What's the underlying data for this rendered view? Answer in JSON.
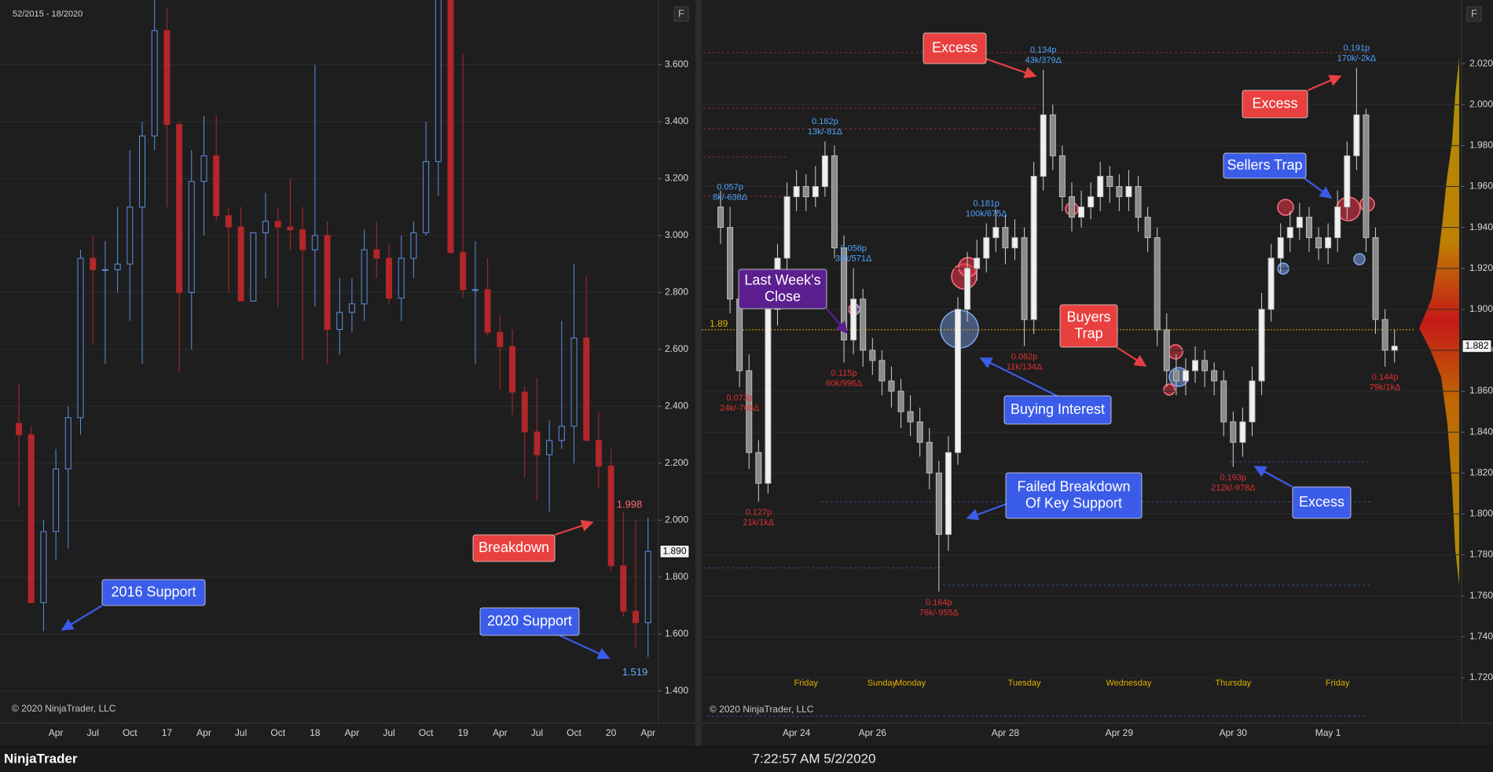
{
  "chart_data": [
    {
      "type": "candlestick",
      "subtitle": "52/2015 - 18/2020",
      "footer": "© 2020 NinjaTrader, LLC",
      "button": "F",
      "categories": [
        null,
        null,
        null,
        "Apr",
        null,
        null,
        "Jul",
        null,
        null,
        "Oct",
        null,
        null,
        "17",
        null,
        null,
        "Apr",
        null,
        null,
        "Jul",
        null,
        null,
        "Oct",
        null,
        null,
        "18",
        null,
        null,
        "Apr",
        null,
        null,
        "Jul",
        null,
        null,
        "Oct",
        null,
        null,
        "19",
        null,
        null,
        "Apr",
        null,
        null,
        "Jul",
        null,
        null,
        "Oct",
        null,
        null,
        "20",
        null,
        null,
        "Apr"
      ],
      "open": [
        2.34,
        2.3,
        1.71,
        1.96,
        2.18,
        2.36,
        2.92,
        2.88,
        2.88,
        2.9,
        3.1,
        3.35,
        3.72,
        3.39,
        2.8,
        3.19,
        3.28,
        3.07,
        3.03,
        2.77,
        3.01,
        3.05,
        3.03,
        3.02,
        2.95,
        3.0,
        2.67,
        2.73,
        2.76,
        2.95,
        2.92,
        2.78,
        2.92,
        3.01,
        3.26,
        4.61,
        2.94,
        2.81,
        2.81,
        2.66,
        2.61,
        2.45,
        2.31,
        2.23,
        2.28,
        2.33,
        2.64,
        2.28,
        2.19,
        1.84,
        1.68,
        1.64
      ],
      "high": [
        2.48,
        2.33,
        2.0,
        2.25,
        2.4,
        2.95,
        3.0,
        2.98,
        3.1,
        3.3,
        3.4,
        3.99,
        3.8,
        3.4,
        3.3,
        3.42,
        3.42,
        3.1,
        3.1,
        3.0,
        3.15,
        3.1,
        3.2,
        3.1,
        3.6,
        3.05,
        2.85,
        2.85,
        3.02,
        3.05,
        2.97,
        3.0,
        3.05,
        3.4,
        4.93,
        4.8,
        3.64,
        2.98,
        2.92,
        2.72,
        2.67,
        2.47,
        2.5,
        2.35,
        2.7,
        2.9,
        2.86,
        2.38,
        2.25,
        2.03,
        2.0,
        2.01
      ],
      "low": [
        2.05,
        1.71,
        1.61,
        1.86,
        1.9,
        2.3,
        2.62,
        2.55,
        2.8,
        2.7,
        2.55,
        3.3,
        3.1,
        2.52,
        2.6,
        3.0,
        3.05,
        2.8,
        2.78,
        2.77,
        2.85,
        2.75,
        2.95,
        2.56,
        2.75,
        2.55,
        2.58,
        2.66,
        2.7,
        2.85,
        2.76,
        2.7,
        2.85,
        3.0,
        3.14,
        2.94,
        2.78,
        2.55,
        2.65,
        2.46,
        2.37,
        2.15,
        2.07,
        2.03,
        2.25,
        2.2,
        2.28,
        2.11,
        1.82,
        1.66,
        1.55,
        1.519
      ],
      "close": [
        2.3,
        1.71,
        1.96,
        2.18,
        2.36,
        2.92,
        2.88,
        2.88,
        2.9,
        3.1,
        3.35,
        3.72,
        3.39,
        2.8,
        3.19,
        3.28,
        3.07,
        3.03,
        2.77,
        3.01,
        3.05,
        3.03,
        3.02,
        2.95,
        3.0,
        2.67,
        2.73,
        2.76,
        2.95,
        2.92,
        2.78,
        2.92,
        3.01,
        3.26,
        4.61,
        2.94,
        2.81,
        2.81,
        2.66,
        2.61,
        2.45,
        2.31,
        2.23,
        2.28,
        2.33,
        2.64,
        2.28,
        2.19,
        1.84,
        1.68,
        1.64,
        1.89
      ],
      "up_color": "#5b8fe6",
      "down_color": "#b3262a",
      "wick_color": null,
      "ylim": [
        1.3,
        3.8
      ],
      "yticks": [
        {
          "value": 1.4,
          "label": "1.400"
        },
        {
          "value": 1.6,
          "label": "1.600"
        },
        {
          "value": 1.8,
          "label": "1.800"
        },
        {
          "value": 2.0,
          "label": "2.000"
        },
        {
          "value": 2.2,
          "label": "2.200"
        },
        {
          "value": 2.4,
          "label": "2.400"
        },
        {
          "value": 2.6,
          "label": "2.600"
        },
        {
          "value": 2.8,
          "label": "2.800"
        },
        {
          "value": 3.0,
          "label": "3.000"
        },
        {
          "value": 3.2,
          "label": "3.200"
        },
        {
          "value": 3.4,
          "label": "3.400"
        },
        {
          "value": 3.6,
          "label": "3.600"
        }
      ],
      "grid": true,
      "last_price": {
        "value": 1.89,
        "label": "1.890"
      },
      "price_labels": [
        {
          "value": 1.998,
          "color": "#ff6b6b"
        },
        {
          "value": 1.519,
          "color": "#6aa8ff"
        }
      ],
      "callouts": [
        {
          "lines": [
            "2016 Support"
          ],
          "color": "#3b5ce8"
        },
        {
          "lines": [
            "Breakdown"
          ],
          "color": "#e8403f"
        },
        {
          "lines": [
            "2020 Support"
          ],
          "color": "#3b5ce8"
        }
      ]
    },
    {
      "type": "candlestick",
      "footer": "© 2020 NinjaTrader, LLC",
      "button": "F",
      "categories": [
        null,
        null,
        null,
        null,
        null,
        null,
        null,
        null,
        "Apr 24",
        null,
        null,
        null,
        null,
        null,
        null,
        null,
        "Apr 26",
        null,
        null,
        null,
        null,
        null,
        null,
        null,
        null,
        null,
        null,
        null,
        null,
        null,
        "Apr 28",
        null,
        null,
        null,
        null,
        null,
        null,
        null,
        null,
        null,
        null,
        null,
        "Apr 29",
        null,
        null,
        null,
        null,
        null,
        null,
        null,
        null,
        null,
        null,
        null,
        "Apr 30",
        null,
        null,
        null,
        null,
        null,
        null,
        null,
        null,
        null,
        "May 1",
        null,
        null,
        null,
        null,
        null,
        null,
        null
      ],
      "sessions": [
        null,
        null,
        null,
        null,
        null,
        null,
        null,
        null,
        null,
        "Friday",
        null,
        null,
        null,
        null,
        null,
        null,
        null,
        "Sunday",
        null,
        null,
        "Monday",
        null,
        null,
        null,
        null,
        null,
        null,
        null,
        null,
        null,
        null,
        null,
        "Tuesday",
        null,
        null,
        null,
        null,
        null,
        null,
        null,
        null,
        null,
        null,
        "Wednesday",
        null,
        null,
        null,
        null,
        null,
        null,
        null,
        null,
        null,
        null,
        "Thursday",
        null,
        null,
        null,
        null,
        null,
        null,
        null,
        null,
        null,
        null,
        "Friday",
        null,
        null,
        null,
        null,
        null,
        null
      ],
      "open": [
        1.95,
        1.94,
        1.905,
        1.87,
        1.83,
        1.815,
        1.9,
        1.925,
        1.955,
        1.96,
        1.955,
        1.96,
        1.975,
        1.93,
        1.885,
        1.905,
        1.88,
        1.875,
        1.865,
        1.86,
        1.85,
        1.845,
        1.835,
        1.82,
        1.79,
        1.83,
        1.9,
        1.92,
        1.925,
        1.935,
        1.94,
        1.93,
        1.935,
        1.895,
        1.965,
        1.995,
        1.975,
        1.955,
        1.945,
        1.95,
        1.955,
        1.965,
        1.96,
        1.955,
        1.96,
        1.945,
        1.935,
        1.89,
        1.87,
        1.865,
        1.87,
        1.875,
        1.87,
        1.865,
        1.845,
        1.835,
        1.845,
        1.865,
        1.9,
        1.925,
        1.935,
        1.94,
        1.945,
        1.935,
        1.93,
        1.935,
        1.95,
        1.975,
        1.995,
        1.935,
        1.895,
        1.88
      ],
      "high": [
        1.958,
        1.95,
        1.912,
        1.878,
        1.836,
        1.908,
        1.932,
        1.962,
        1.968,
        1.966,
        1.97,
        1.982,
        1.98,
        1.936,
        1.92,
        1.91,
        1.886,
        1.88,
        1.872,
        1.866,
        1.858,
        1.852,
        1.842,
        1.826,
        1.838,
        1.906,
        1.928,
        1.934,
        1.942,
        1.949,
        1.946,
        1.944,
        1.94,
        1.972,
        2.017,
        2.0,
        1.98,
        1.962,
        1.958,
        1.962,
        1.972,
        1.97,
        1.966,
        1.968,
        1.965,
        1.95,
        1.94,
        1.898,
        1.878,
        1.876,
        1.882,
        1.88,
        1.874,
        1.87,
        1.85,
        1.852,
        1.872,
        1.908,
        1.932,
        1.942,
        1.948,
        1.952,
        1.95,
        1.94,
        1.942,
        1.958,
        1.982,
        2.018,
        1.998,
        1.94,
        1.9,
        1.89
      ],
      "low": [
        1.932,
        1.898,
        1.862,
        1.822,
        1.806,
        1.81,
        1.892,
        1.918,
        1.948,
        1.948,
        1.95,
        1.955,
        1.925,
        1.874,
        1.878,
        1.872,
        1.868,
        1.858,
        1.852,
        1.842,
        1.838,
        1.828,
        1.812,
        1.762,
        1.782,
        1.824,
        1.894,
        1.914,
        1.918,
        1.928,
        1.922,
        1.924,
        1.882,
        1.888,
        1.958,
        1.968,
        1.948,
        1.938,
        1.94,
        1.944,
        1.948,
        1.952,
        1.948,
        1.948,
        1.938,
        1.928,
        1.882,
        1.862,
        1.858,
        1.858,
        1.864,
        1.862,
        1.858,
        1.838,
        1.823,
        1.828,
        1.838,
        1.858,
        1.894,
        1.918,
        1.928,
        1.934,
        1.928,
        1.924,
        1.922,
        1.928,
        1.944,
        1.968,
        1.928,
        1.888,
        1.872,
        1.874
      ],
      "close": [
        1.94,
        1.905,
        1.87,
        1.83,
        1.815,
        1.9,
        1.925,
        1.955,
        1.96,
        1.955,
        1.96,
        1.975,
        1.93,
        1.885,
        1.905,
        1.88,
        1.875,
        1.865,
        1.86,
        1.85,
        1.845,
        1.835,
        1.82,
        1.79,
        1.83,
        1.9,
        1.92,
        1.925,
        1.935,
        1.94,
        1.93,
        1.935,
        1.895,
        1.965,
        1.995,
        1.975,
        1.955,
        1.945,
        1.95,
        1.955,
        1.965,
        1.96,
        1.955,
        1.96,
        1.945,
        1.935,
        1.89,
        1.87,
        1.865,
        1.87,
        1.875,
        1.87,
        1.865,
        1.845,
        1.835,
        1.845,
        1.865,
        1.9,
        1.925,
        1.935,
        1.94,
        1.945,
        1.935,
        1.93,
        1.935,
        1.95,
        1.975,
        1.995,
        1.935,
        1.895,
        1.88,
        1.882
      ],
      "up_color": "#f0f0f0",
      "down_color": "#8a8a8a",
      "wick_color": "#d0d0d0",
      "ylim": [
        1.7,
        2.045
      ],
      "yticks": [
        {
          "value": 1.72,
          "label": "1.720"
        },
        {
          "value": 1.74,
          "label": "1.740"
        },
        {
          "value": 1.76,
          "label": "1.760"
        },
        {
          "value": 1.78,
          "label": "1.780"
        },
        {
          "value": 1.8,
          "label": "1.800"
        },
        {
          "value": 1.82,
          "label": "1.820"
        },
        {
          "value": 1.84,
          "label": "1.840"
        },
        {
          "value": 1.86,
          "label": "1.860"
        },
        {
          "value": 1.88,
          "label": "1.880"
        },
        {
          "value": 1.9,
          "label": "1.900"
        },
        {
          "value": 1.92,
          "label": "1.920"
        },
        {
          "value": 1.94,
          "label": "1.940"
        },
        {
          "value": 1.96,
          "label": "1.960"
        },
        {
          "value": 1.98,
          "label": "1.980"
        },
        {
          "value": 2.0,
          "label": "2.000"
        },
        {
          "value": 2.02,
          "label": "2.020"
        }
      ],
      "grid": true,
      "last_price": {
        "value": 1.882,
        "label": "1.882"
      },
      "reference_line": {
        "value": 1.89,
        "color": "#e0b000"
      },
      "swing_labels": [
        {
          "lines": [
            "0.057p",
            "8k/-638Δ"
          ],
          "color": "#4da3ff"
        },
        {
          "lines": [
            "0.182p",
            "13k/-81Δ"
          ],
          "color": "#4da3ff"
        },
        {
          "lines": [
            "0.056p",
            "35k/571Δ"
          ],
          "color": "#4da3ff"
        },
        {
          "lines": [
            "0.181p",
            "100k/675Δ"
          ],
          "color": "#4da3ff"
        },
        {
          "lines": [
            "0.134p",
            "43k/379Δ"
          ],
          "color": "#4da3ff"
        },
        {
          "lines": [
            "0.191p",
            "170k/-2kΔ"
          ],
          "color": "#4da3ff"
        },
        {
          "lines": [
            "0.073p",
            "24k/-766Δ"
          ],
          "color": "#e03030"
        },
        {
          "lines": [
            "0.127p",
            "21k/1kΔ"
          ],
          "color": "#e03030"
        },
        {
          "lines": [
            "0.115p",
            "60k/996Δ"
          ],
          "color": "#e03030"
        },
        {
          "lines": [
            "0.164p",
            "76k/-955Δ"
          ],
          "color": "#e03030"
        },
        {
          "lines": [
            "0.062p",
            "11k/134Δ"
          ],
          "color": "#e03030"
        },
        {
          "lines": [
            "0.193p",
            "212k/-978Δ"
          ],
          "color": "#e03030"
        },
        {
          "lines": [
            "0.144p",
            "79k/1kΔ"
          ],
          "color": "#e03030"
        }
      ],
      "callouts": [
        {
          "lines": [
            "Excess"
          ],
          "color": "#e8403f"
        },
        {
          "lines": [
            "Last Week's",
            "Close"
          ],
          "color": "#5b1f8f"
        },
        {
          "lines": [
            "Buyers",
            "Trap"
          ],
          "color": "#e8403f"
        },
        {
          "lines": [
            "Buying Interest"
          ],
          "color": "#3b5ce8"
        },
        {
          "lines": [
            "Failed Breakdown",
            "Of Key Support"
          ],
          "color": "#3b5ce8"
        },
        {
          "lines": [
            "Excess"
          ],
          "color": "#e8403f"
        },
        {
          "lines": [
            "Sellers Trap"
          ],
          "color": "#3b5ce8"
        },
        {
          "lines": [
            "Excess"
          ],
          "color": "#3b5ce8"
        }
      ]
    }
  ],
  "status_bar": {
    "brand": "NinjaTrader",
    "clock": "7:22:57 AM 5/2/2020"
  }
}
